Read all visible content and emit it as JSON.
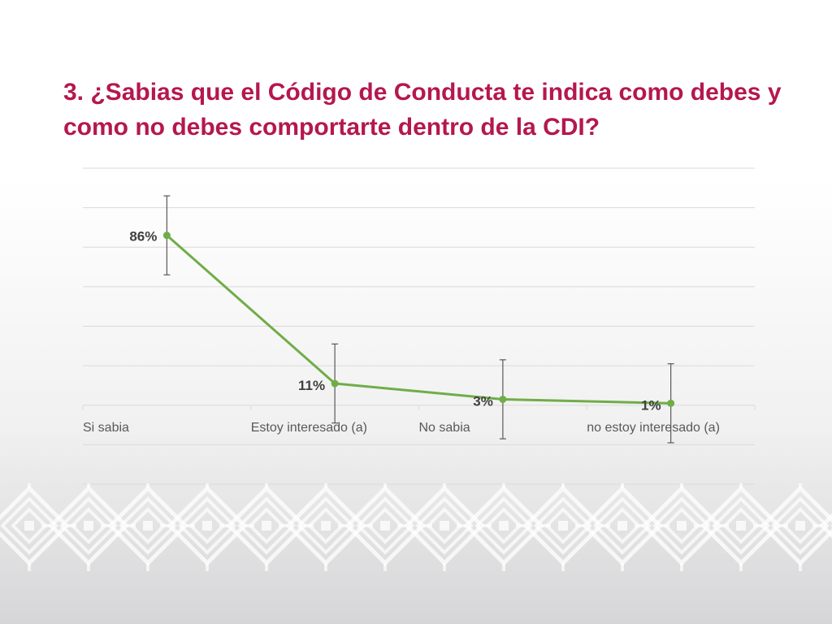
{
  "slide": {
    "title": " 3. ¿Sabias que el Código de Conducta te indica como debes y\ncomo no debes comportarte dentro de la CDI?"
  },
  "colors": {
    "title": "#b5174f",
    "line": "#70ad47",
    "grid": "#d9d9d9",
    "error_bar": "#595959"
  },
  "chart_data": {
    "type": "line",
    "categories": [
      "Si sabia",
      "Estoy interesado (a)",
      "No sabia",
      "no estoy interesado (a)"
    ],
    "series": [
      {
        "values": [
          86,
          11,
          3,
          1
        ]
      }
    ],
    "data_labels": [
      "86%",
      "11%",
      "3%",
      "1%"
    ],
    "error_bars": [
      {
        "low": 66,
        "high": 106
      },
      {
        "low": -9,
        "high": 31
      },
      {
        "low": -17,
        "high": 23
      },
      {
        "low": -19,
        "high": 21
      }
    ],
    "ylim": [
      -40,
      120
    ],
    "grid": true,
    "legend": "none"
  }
}
